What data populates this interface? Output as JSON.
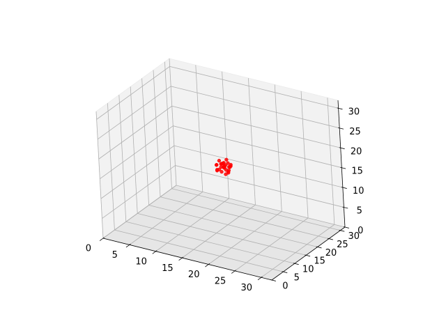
{
  "chart_data": {
    "type": "scatter",
    "projection": "3d",
    "title": "",
    "xlabel": "",
    "ylabel": "",
    "zlabel": "",
    "xlim": [
      0,
      32
    ],
    "ylim": [
      0,
      32
    ],
    "zlim": [
      0,
      32
    ],
    "x_ticks": [
      "0",
      "5",
      "10",
      "15",
      "20",
      "25",
      "30"
    ],
    "y_ticks": [
      "0",
      "5",
      "10",
      "15",
      "20",
      "25",
      "30"
    ],
    "z_ticks": [
      "0",
      "5",
      "10",
      "15",
      "20",
      "25",
      "30"
    ],
    "grid": true,
    "point_color": "#ff0000",
    "series": [
      {
        "points": [
          [
            16.2,
            16.2,
            17.4
          ],
          [
            16.8,
            15.8,
            16.7
          ],
          [
            17.4,
            16.4,
            16.0
          ],
          [
            15.8,
            16.7,
            16.2
          ],
          [
            16.5,
            17.2,
            15.5
          ],
          [
            17.1,
            15.3,
            17.2
          ],
          [
            15.3,
            15.9,
            16.9
          ],
          [
            16.0,
            17.5,
            17.0
          ],
          [
            17.6,
            16.9,
            17.3
          ],
          [
            15.6,
            15.4,
            15.8
          ],
          [
            16.9,
            16.1,
            15.0
          ],
          [
            16.3,
            16.6,
            16.4
          ],
          [
            17.3,
            17.5,
            16.6
          ],
          [
            15.4,
            16.9,
            17.6
          ],
          [
            16.1,
            15.2,
            16.3
          ],
          [
            17.8,
            16.0,
            17.1
          ],
          [
            15.9,
            17.9,
            16.0
          ],
          [
            16.7,
            15.6,
            17.9
          ],
          [
            17.0,
            17.0,
            15.3
          ],
          [
            15.2,
            16.3,
            15.5
          ],
          [
            16.4,
            17.8,
            17.8
          ],
          [
            17.7,
            15.5,
            15.9
          ],
          [
            16.6,
            16.8,
            16.9
          ],
          [
            15.7,
            15.1,
            17.4
          ],
          [
            17.2,
            16.6,
            17.7
          ],
          [
            16.0,
            16.4,
            15.2
          ],
          [
            16.9,
            17.7,
            16.2
          ],
          [
            15.5,
            17.4,
            16.6
          ]
        ]
      }
    ]
  }
}
